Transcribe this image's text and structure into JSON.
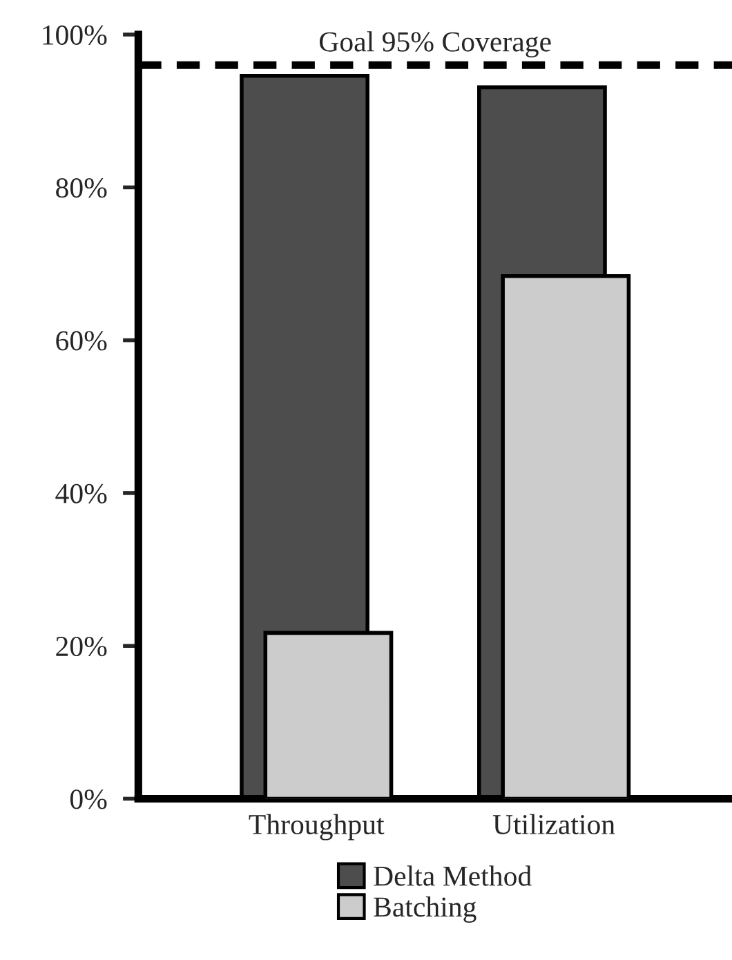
{
  "chart_data": {
    "type": "bar",
    "categories": [
      "Throughput",
      "Utilization"
    ],
    "series": [
      {
        "name": "Delta Method",
        "color": "#4d4d4d",
        "values": [
          94.6,
          93.1
        ]
      },
      {
        "name": "Batching",
        "color": "#cccccc",
        "values": [
          21.7,
          68.4
        ]
      }
    ],
    "ylim": [
      0,
      100
    ],
    "yticks": [
      {
        "value": 0,
        "label": "0%"
      },
      {
        "value": 20,
        "label": "20%"
      },
      {
        "value": 40,
        "label": "40%"
      },
      {
        "value": 60,
        "label": "60%"
      },
      {
        "value": 80,
        "label": "80%"
      },
      {
        "value": 100,
        "label": "100%"
      }
    ],
    "ref_lines": [
      {
        "axis": "y",
        "value": 96,
        "label": "Goal 95% Coverage",
        "color": "#000000",
        "line_style": "dashed"
      }
    ],
    "grid": false,
    "legend": "bottom"
  }
}
